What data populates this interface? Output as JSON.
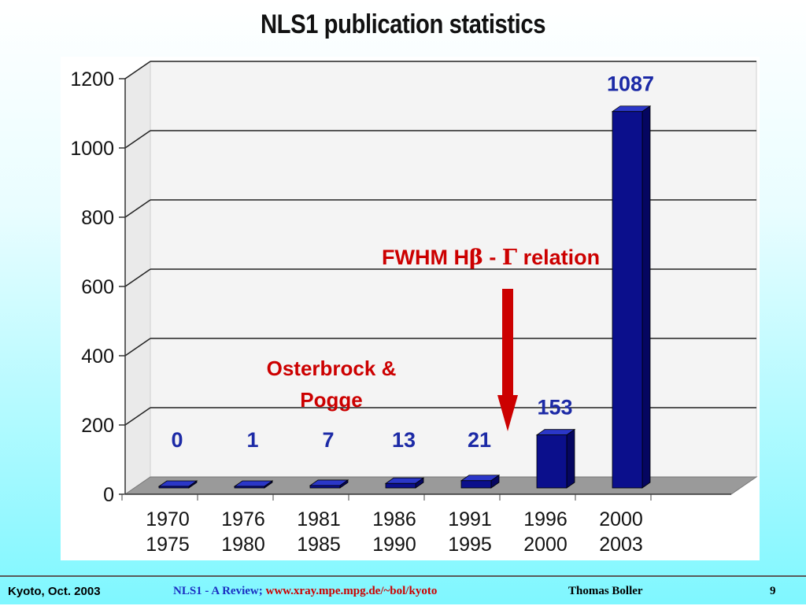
{
  "slide": {
    "title": "NLS1 publication statistics"
  },
  "chart_data": {
    "type": "bar",
    "categories": [
      [
        "1970",
        "1975"
      ],
      [
        "1976",
        "1980"
      ],
      [
        "1981",
        "1985"
      ],
      [
        "1986",
        "1990"
      ],
      [
        "1991",
        "1995"
      ],
      [
        "1996",
        "2000"
      ],
      [
        "2000",
        "2003"
      ]
    ],
    "values": [
      0,
      1,
      7,
      13,
      21,
      153,
      1087
    ],
    "value_labels": [
      "0",
      "1",
      "7",
      "13",
      "21",
      "153",
      "1087"
    ],
    "ylim": [
      0,
      1200
    ],
    "yticks": [
      0,
      200,
      400,
      600,
      800,
      1000,
      1200
    ],
    "grid": true,
    "three_d": true,
    "title": "",
    "xlabel": "",
    "ylabel": "",
    "colors": {
      "bar_front": "#0b0f8c",
      "bar_top": "#2b37c8",
      "bar_side": "#050660",
      "value_label": "#1c2aa6",
      "floor": "#9a9a9a",
      "wall": "#f4f4f4",
      "grid": "#222222"
    }
  },
  "annotations": {
    "osterbrock_line1": "Osterbrock &",
    "osterbrock_line2": "Pogge",
    "fwhm_prefix": "FWHM H",
    "fwhm_beta": "β",
    "fwhm_dash": " - ",
    "fwhm_gamma": "Γ",
    "fwhm_suffix": " relation",
    "color": "#cc0000"
  },
  "footer": {
    "left": "Kyoto, Oct. 2003",
    "center_title": "NLS1 - A Review;",
    "center_url": "www.xray.mpe.mpg.de/~bol/kyoto",
    "author": "Thomas Boller",
    "page": "9"
  }
}
